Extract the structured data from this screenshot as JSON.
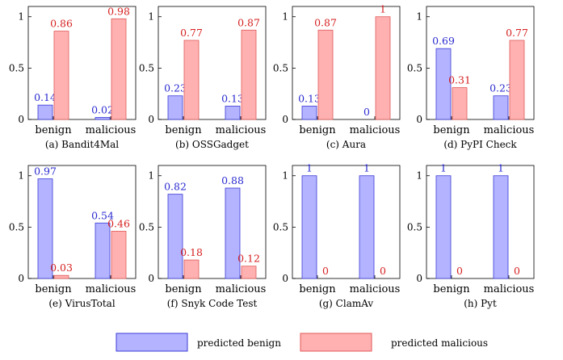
{
  "colors": {
    "benign_fill": "#b3b3ff",
    "benign_stroke": "#3b3bd6",
    "benign_label": "#2a2ad0",
    "malicious_fill": "#ffb0b0",
    "malicious_stroke": "#e05a5a",
    "malicious_label": "#d61f1f",
    "axis": "#000000"
  },
  "legend": {
    "benign": "predicted benign",
    "malicious": "predicted malicious"
  },
  "chart_data": [
    {
      "type": "bar",
      "caption": "(a) Bandit4Mal",
      "categories": [
        "benign",
        "malicious"
      ],
      "ylim": [
        0,
        1.1
      ],
      "yticks": [
        "0",
        "0.5",
        "1"
      ],
      "series": [
        {
          "name": "predicted benign",
          "values": [
            0.14,
            0.02
          ],
          "labels": [
            "0.14",
            "0.02"
          ]
        },
        {
          "name": "predicted malicious",
          "values": [
            0.86,
            0.98
          ],
          "labels": [
            "0.86",
            "0.98"
          ]
        }
      ]
    },
    {
      "type": "bar",
      "caption": "(b) OSSGadget",
      "categories": [
        "benign",
        "malicious"
      ],
      "ylim": [
        0,
        1.1
      ],
      "yticks": [
        "0",
        "0.5",
        "1"
      ],
      "series": [
        {
          "name": "predicted benign",
          "values": [
            0.23,
            0.13
          ],
          "labels": [
            "0.23",
            "0.13"
          ]
        },
        {
          "name": "predicted malicious",
          "values": [
            0.77,
            0.87
          ],
          "labels": [
            "0.77",
            "0.87"
          ]
        }
      ]
    },
    {
      "type": "bar",
      "caption": "(c) Aura",
      "categories": [
        "benign",
        "malicious"
      ],
      "ylim": [
        0,
        1.1
      ],
      "yticks": [
        "0",
        "0.5",
        "1"
      ],
      "series": [
        {
          "name": "predicted benign",
          "values": [
            0.13,
            0
          ],
          "labels": [
            "0.13",
            "0"
          ]
        },
        {
          "name": "predicted malicious",
          "values": [
            0.87,
            1
          ],
          "labels": [
            "0.87",
            "1"
          ]
        }
      ]
    },
    {
      "type": "bar",
      "caption": "(d) PyPI Check",
      "categories": [
        "benign",
        "malicious"
      ],
      "ylim": [
        0,
        1.1
      ],
      "yticks": [
        "0",
        "0.5",
        "1"
      ],
      "series": [
        {
          "name": "predicted benign",
          "values": [
            0.69,
            0.23
          ],
          "labels": [
            "0.69",
            "0.23"
          ]
        },
        {
          "name": "predicted malicious",
          "values": [
            0.31,
            0.77
          ],
          "labels": [
            "0.31",
            "0.77"
          ]
        }
      ]
    },
    {
      "type": "bar",
      "caption": "(e) VirusTotal",
      "categories": [
        "benign",
        "malicious"
      ],
      "ylim": [
        0,
        1.1
      ],
      "yticks": [
        "0",
        "0.5",
        "1"
      ],
      "series": [
        {
          "name": "predicted benign",
          "values": [
            0.97,
            0.54
          ],
          "labels": [
            "0.97",
            "0.54"
          ]
        },
        {
          "name": "predicted malicious",
          "values": [
            0.03,
            0.46
          ],
          "labels": [
            "0.03",
            "0.46"
          ]
        }
      ]
    },
    {
      "type": "bar",
      "caption": "(f) Snyk Code Test",
      "categories": [
        "benign",
        "malicious"
      ],
      "ylim": [
        0,
        1.1
      ],
      "yticks": [
        "0",
        "0.5",
        "1"
      ],
      "series": [
        {
          "name": "predicted benign",
          "values": [
            0.82,
            0.88
          ],
          "labels": [
            "0.82",
            "0.88"
          ]
        },
        {
          "name": "predicted malicious",
          "values": [
            0.18,
            0.12
          ],
          "labels": [
            "0.18",
            "0.12"
          ]
        }
      ]
    },
    {
      "type": "bar",
      "caption": "(g) ClamAv",
      "categories": [
        "benign",
        "malicious"
      ],
      "ylim": [
        0,
        1.1
      ],
      "yticks": [
        "0",
        "0.5",
        "1"
      ],
      "series": [
        {
          "name": "predicted benign",
          "values": [
            1,
            1
          ],
          "labels": [
            "1",
            "1"
          ]
        },
        {
          "name": "predicted malicious",
          "values": [
            0,
            0
          ],
          "labels": [
            "0",
            "0"
          ]
        }
      ]
    },
    {
      "type": "bar",
      "caption": "(h) Pyt",
      "categories": [
        "benign",
        "malicious"
      ],
      "ylim": [
        0,
        1.1
      ],
      "yticks": [
        "0",
        "0.5",
        "1"
      ],
      "series": [
        {
          "name": "predicted benign",
          "values": [
            1,
            1
          ],
          "labels": [
            "1",
            "1"
          ]
        },
        {
          "name": "predicted malicious",
          "values": [
            0,
            0
          ],
          "labels": [
            "0",
            "0"
          ]
        }
      ]
    }
  ]
}
